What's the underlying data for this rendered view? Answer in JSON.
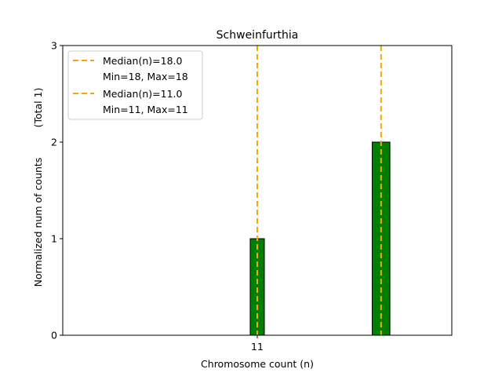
{
  "chart_data": {
    "type": "bar",
    "title": "Schweinfurthia",
    "xlabel": "Chromosome count (n)",
    "ylabel": "Normalized num of counts",
    "ylabel2": "(Total 1)",
    "xlim": [
      0,
      22
    ],
    "ylim": [
      0,
      3
    ],
    "yticks": [
      0,
      1,
      2,
      3
    ],
    "xticks": [
      11
    ],
    "bars": [
      {
        "left": 10.6,
        "right": 11.4,
        "value": 1
      },
      {
        "left": 17.5,
        "right": 18.5,
        "value": 2
      }
    ],
    "bar_color": "#008000",
    "median_lines": [
      {
        "x": 18.0,
        "color": "#f5a800"
      },
      {
        "x": 11.0,
        "color": "#f5a800"
      }
    ],
    "legend": {
      "placement": "top-left",
      "entries": [
        {
          "label": "Median(n)=18.0",
          "sub": "Min=18, Max=18"
        },
        {
          "label": "Median(n)=11.0",
          "sub": "Min=11, Max=11"
        }
      ]
    }
  }
}
